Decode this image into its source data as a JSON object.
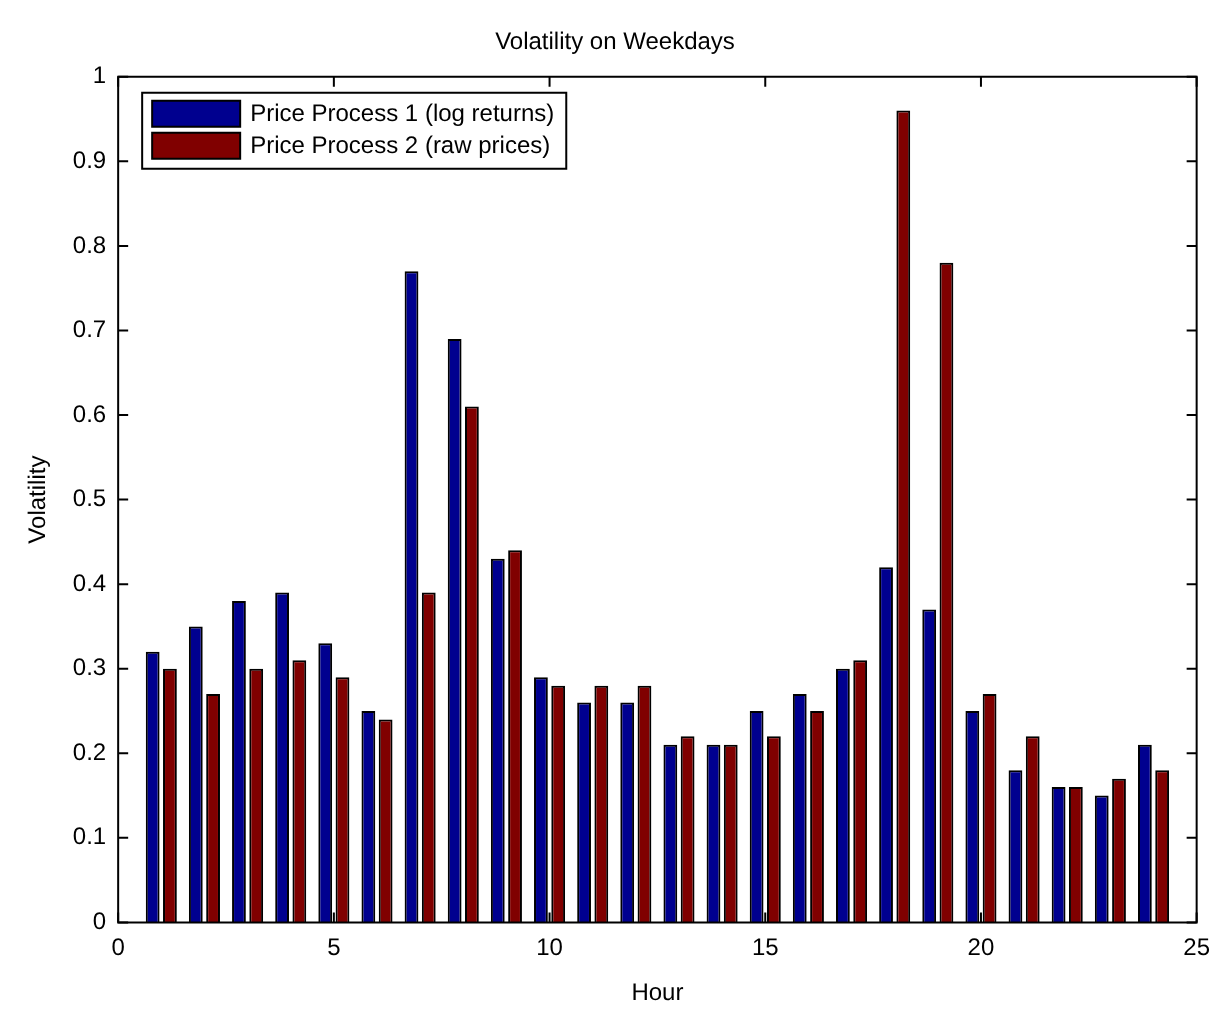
{
  "chart_data": {
    "type": "bar",
    "title": "Volatility on Weekdays",
    "xlabel": "Hour",
    "ylabel": "Volatility",
    "x": [
      1,
      2,
      3,
      4,
      5,
      6,
      7,
      8,
      9,
      10,
      11,
      12,
      13,
      14,
      15,
      16,
      17,
      18,
      19,
      20,
      21,
      22,
      23,
      24
    ],
    "series": [
      {
        "name": "Price Process 1 (log returns)",
        "color": "#00008f",
        "values": [
          0.32,
          0.35,
          0.38,
          0.39,
          0.33,
          0.25,
          0.77,
          0.69,
          0.43,
          0.29,
          0.26,
          0.26,
          0.21,
          0.21,
          0.25,
          0.27,
          0.3,
          0.42,
          0.37,
          0.25,
          0.18,
          0.16,
          0.15,
          0.21
        ]
      },
      {
        "name": "Price Process 2 (raw prices)",
        "color": "#800000",
        "values": [
          0.3,
          0.27,
          0.3,
          0.31,
          0.29,
          0.24,
          0.39,
          0.61,
          0.44,
          0.28,
          0.28,
          0.28,
          0.22,
          0.21,
          0.22,
          0.25,
          0.31,
          0.96,
          0.78,
          0.27,
          0.22,
          0.16,
          0.17,
          0.18
        ]
      }
    ],
    "xlim": [
      0,
      25
    ],
    "xticks": [
      0,
      5,
      10,
      15,
      20,
      25
    ],
    "ylim": [
      0,
      1
    ],
    "yticks": [
      0,
      0.1,
      0.2,
      0.3,
      0.4,
      0.5,
      0.6,
      0.7,
      0.8,
      0.9,
      1
    ],
    "legend": "top left",
    "grid": false
  }
}
